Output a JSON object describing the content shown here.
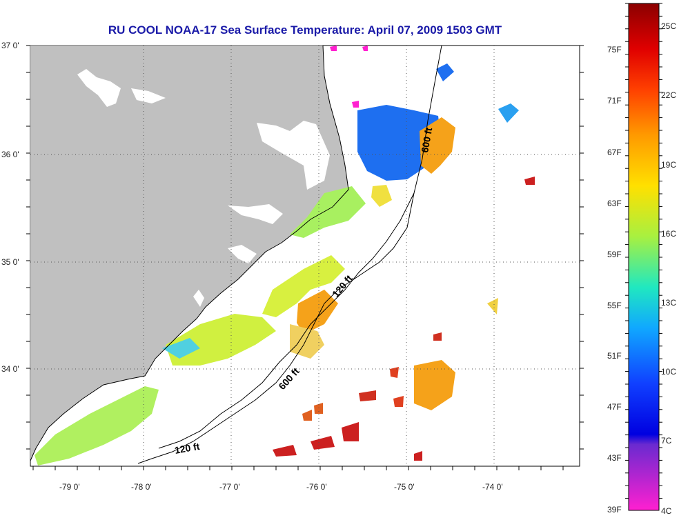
{
  "title": "RU COOL  NOAA-17  Sea Surface Temperature:  April 07, 2009 1503 GMT",
  "lat_ticks": [
    "37 0'",
    "36 0'",
    "35 0'",
    "34 0'"
  ],
  "lon_ticks": [
    "-79 0'",
    "-78 0'",
    "-77 0'",
    "-76 0'",
    "-75 0'",
    "-74 0'"
  ],
  "contour_labels": {
    "c600_north": "600 ft",
    "c120_mid": "120 ft",
    "c600_south": "600 ft",
    "c120_south": "120 ft"
  },
  "colorbar": {
    "fahrenheit": [
      "75F",
      "71F",
      "67F",
      "63F",
      "59F",
      "55F",
      "51F",
      "47F",
      "43F",
      "39F"
    ],
    "celsius": [
      "25C",
      "22C",
      "19C",
      "16C",
      "13C",
      "10C",
      "7C",
      "4C"
    ]
  },
  "colors": {
    "land": "#c0c0c0",
    "title": "#1a1aa8",
    "warm": "#f5a21a",
    "cold": "#1e6ff0"
  }
}
